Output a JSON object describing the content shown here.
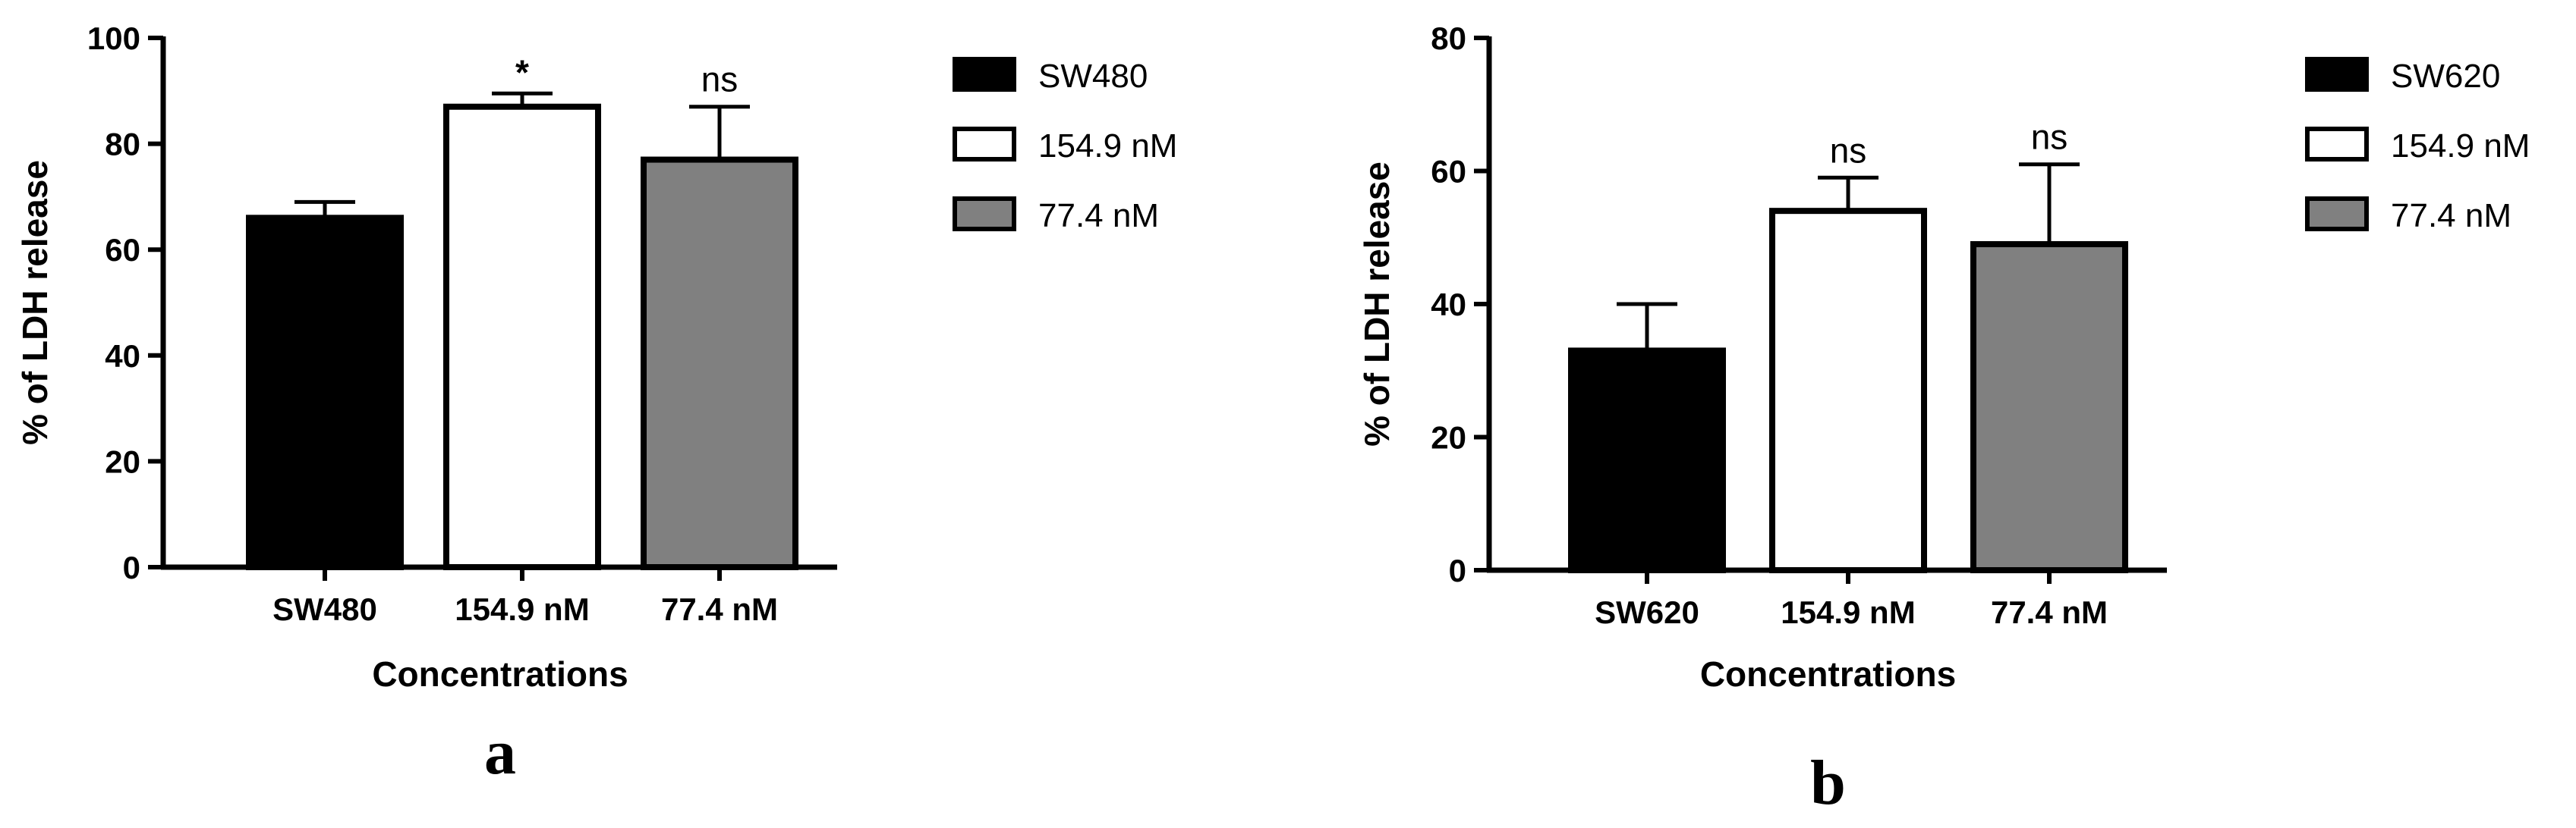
{
  "chart_data": [
    {
      "panel": "a",
      "type": "bar",
      "xlabel": "Concentrations",
      "ylabel": "% of LDH release",
      "ylim": [
        0,
        100
      ],
      "yticks": [
        0,
        20,
        40,
        60,
        80,
        100
      ],
      "categories": [
        "SW480",
        "154.9 nM",
        "77.4 nM"
      ],
      "values": [
        66,
        87,
        77
      ],
      "errors": [
        3,
        2.5,
        10
      ],
      "significance": [
        "",
        "*",
        "ns"
      ],
      "legend": [
        {
          "label": "SW480",
          "fill": "#000000"
        },
        {
          "label": "154.9 nM",
          "fill": "#ffffff"
        },
        {
          "label": "77.4 nM",
          "fill": "#808080"
        }
      ],
      "legend_position": "right",
      "grid": false
    },
    {
      "panel": "b",
      "type": "bar",
      "xlabel": "Concentrations",
      "ylabel": "% of LDH release",
      "ylim": [
        0,
        80
      ],
      "yticks": [
        0,
        20,
        40,
        60,
        80
      ],
      "categories": [
        "SW620",
        "154.9 nM",
        "77.4 nM"
      ],
      "values": [
        33,
        54,
        49
      ],
      "errors": [
        7,
        5,
        12
      ],
      "significance": [
        "",
        "ns",
        "ns"
      ],
      "legend": [
        {
          "label": "SW620",
          "fill": "#000000"
        },
        {
          "label": "154.9 nM",
          "fill": "#ffffff"
        },
        {
          "label": "77.4 nM",
          "fill": "#808080"
        }
      ],
      "legend_position": "right",
      "grid": false
    }
  ]
}
